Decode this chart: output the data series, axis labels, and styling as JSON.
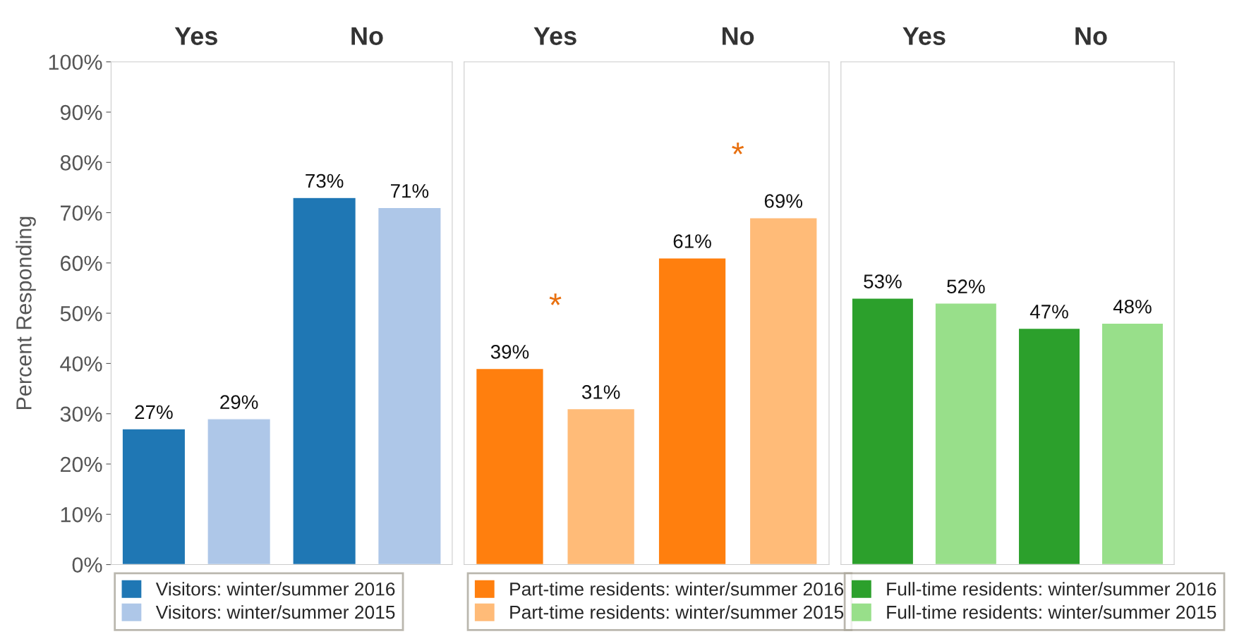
{
  "chart_data": [
    {
      "type": "bar",
      "categories": [
        "Yes",
        "No"
      ],
      "ylabel": "Percent Responding",
      "ylim": [
        0,
        100
      ],
      "yticks": [
        {
          "value": 0,
          "label": "0%"
        },
        {
          "value": 10,
          "label": "10%"
        },
        {
          "value": 20,
          "label": "20%"
        },
        {
          "value": 30,
          "label": "30%"
        },
        {
          "value": 40,
          "label": "40%"
        },
        {
          "value": 50,
          "label": "50%"
        },
        {
          "value": 60,
          "label": "60%"
        },
        {
          "value": 70,
          "label": "70%"
        },
        {
          "value": 80,
          "label": "80%"
        },
        {
          "value": 90,
          "label": "90%"
        },
        {
          "value": 100,
          "label": "100%"
        }
      ],
      "legend": "bottom",
      "grid": false,
      "series": [
        {
          "name": "Visitors: winter/summer 2016",
          "color": "#1f77b4",
          "values": [
            27,
            73
          ],
          "value_labels": [
            "27%",
            "73%"
          ]
        },
        {
          "name": "Visitors: winter/summer 2015",
          "color": "#aec7e8",
          "values": [
            29,
            71
          ],
          "value_labels": [
            "29%",
            "71%"
          ]
        }
      ]
    },
    {
      "type": "bar",
      "categories": [
        "Yes",
        "No"
      ],
      "ylim": [
        0,
        100
      ],
      "tick_labels": "x",
      "legend": "bottom",
      "grid": false,
      "annotations": [
        "*",
        "*"
      ],
      "series": [
        {
          "name": "Part-time residents: winter/summer 2016",
          "color": "#ff7f0e",
          "values": [
            39,
            61
          ],
          "value_labels": [
            "39%",
            "61%"
          ]
        },
        {
          "name": "Part-time residents: winter/summer 2015",
          "color": "#ffbb78",
          "values": [
            31,
            69
          ],
          "value_labels": [
            "31%",
            "69%"
          ]
        }
      ]
    },
    {
      "type": "bar",
      "categories": [
        "Yes",
        "No"
      ],
      "ylim": [
        0,
        100
      ],
      "tick_labels": "x",
      "legend": "bottom",
      "grid": false,
      "series": [
        {
          "name": "Full-time residents: winter/summer 2016",
          "color": "#2ca02c",
          "values": [
            53,
            47
          ],
          "value_labels": [
            "53%",
            "47%"
          ]
        },
        {
          "name": "Full-time residents: winter/summer 2015",
          "color": "#98df8a",
          "values": [
            52,
            48
          ],
          "value_labels": [
            "52%",
            "48%"
          ]
        }
      ]
    }
  ]
}
